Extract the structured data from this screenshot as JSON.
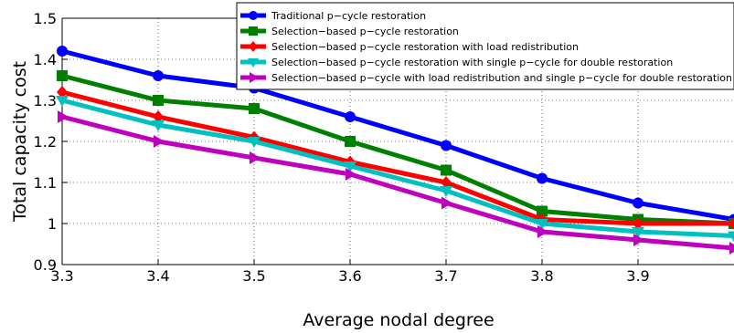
{
  "chart_data": {
    "type": "line",
    "title": "",
    "xlabel": "Average nodal degree",
    "ylabel": "Total capacity cost",
    "x": [
      3.3,
      3.4,
      3.5,
      3.6,
      3.7,
      3.8,
      3.9,
      4.0
    ],
    "xlim": [
      3.3,
      4.0
    ],
    "ylim": [
      0.9,
      1.5
    ],
    "xticks": [
      3.3,
      3.4,
      3.5,
      3.6,
      3.7,
      3.8,
      3.9
    ],
    "xtick_labels": [
      "3.3",
      "3.4",
      "3.5",
      "3.6",
      "3.7",
      "3.8",
      "3.9"
    ],
    "yticks": [
      0.9,
      1.0,
      1.1,
      1.2,
      1.3,
      1.4,
      1.5
    ],
    "ytick_labels": [
      "0.9",
      "1",
      "1.1",
      "1.2",
      "1.3",
      "1.4",
      "1.5"
    ],
    "grid": true,
    "legend_position": "top-right",
    "series": [
      {
        "name": "Traditional p−cycle restoration",
        "color": "#0000ff",
        "marker": "circle",
        "values": [
          1.42,
          1.36,
          1.33,
          1.26,
          1.19,
          1.11,
          1.05,
          1.01
        ]
      },
      {
        "name": "Selection−based p−cycle restoration",
        "color": "#008000",
        "marker": "square",
        "values": [
          1.36,
          1.3,
          1.28,
          1.2,
          1.13,
          1.03,
          1.01,
          1.0
        ]
      },
      {
        "name": "Selection−based p−cycle restoration with load redistribution",
        "color": "#ff0000",
        "marker": "diamond",
        "values": [
          1.32,
          1.26,
          1.21,
          1.15,
          1.1,
          1.01,
          1.0,
          1.0
        ]
      },
      {
        "name": "Selection−based p−cycle restoration with single p−cycle for double restoration",
        "color": "#00c0c0",
        "marker": "triangle-down",
        "values": [
          1.3,
          1.24,
          1.2,
          1.14,
          1.08,
          1.0,
          0.98,
          0.97
        ]
      },
      {
        "name": "Selection−based p−cycle with load redistribution and single p−cycle for double restoration",
        "color": "#bf00bf",
        "marker": "triangle-right",
        "values": [
          1.26,
          1.2,
          1.16,
          1.12,
          1.05,
          0.98,
          0.96,
          0.94
        ]
      }
    ]
  }
}
